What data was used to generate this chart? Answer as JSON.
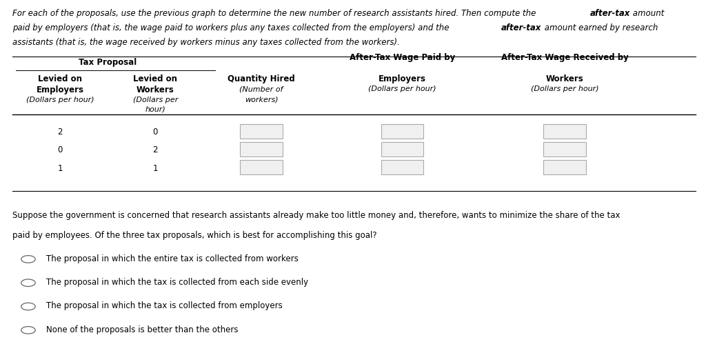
{
  "bg_color": "#ffffff",
  "text_color": "#000000",
  "line_color": "#000000",
  "box_edge_color": "#aaaaaa",
  "box_face_color": "#f0f0f0",
  "font_size": 8.5,
  "small_font_size": 8.0,
  "rows": [
    {
      "col1": "2",
      "col2": "0"
    },
    {
      "col1": "0",
      "col2": "2"
    },
    {
      "col1": "1",
      "col2": "1"
    }
  ],
  "options": [
    "The proposal in which the entire tax is collected from workers",
    "The proposal in which the tax is collected from each side evenly",
    "The proposal in which the tax is collected from employers",
    "None of the proposals is better than the others"
  ]
}
